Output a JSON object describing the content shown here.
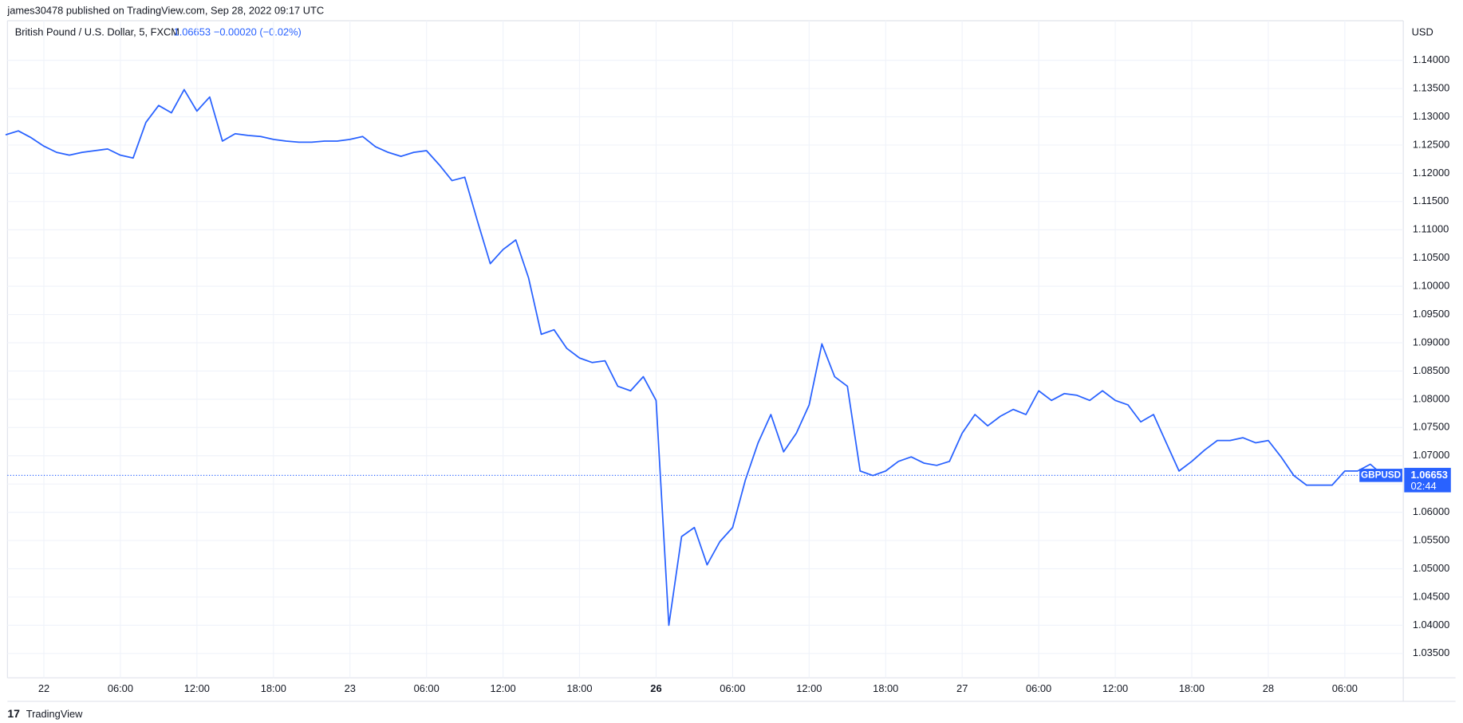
{
  "header": {
    "published": "james30478 published on TradingView.com, Sep 28, 2022 09:17 UTC"
  },
  "footer": {
    "brand": "TradingView"
  },
  "chart_data": {
    "type": "line",
    "title": "British Pound / U.S. Dollar, 5, FXCM",
    "change_label": "−0.00020 (−0.02%)",
    "y_unit": "USD",
    "countdown": "02:44",
    "grid": true,
    "categories": [
      null,
      null,
      null,
      "22",
      null,
      null,
      null,
      null,
      null,
      "06:00",
      null,
      null,
      null,
      null,
      null,
      "12:00",
      null,
      null,
      null,
      null,
      null,
      "18:00",
      null,
      null,
      null,
      null,
      null,
      "23",
      null,
      null,
      null,
      null,
      null,
      "06:00",
      null,
      null,
      null,
      null,
      null,
      "12:00",
      null,
      null,
      null,
      null,
      null,
      "18:00",
      null,
      null,
      null,
      null,
      null,
      "26",
      null,
      null,
      null,
      null,
      null,
      "06:00",
      null,
      null,
      null,
      null,
      null,
      "12:00",
      null,
      null,
      null,
      null,
      null,
      "18:00",
      null,
      null,
      null,
      null,
      null,
      "27",
      null,
      null,
      null,
      null,
      null,
      "06:00",
      null,
      null,
      null,
      null,
      null,
      "12:00",
      null,
      null,
      null,
      null,
      null,
      "18:00",
      null,
      null,
      null,
      null,
      null,
      "28",
      null,
      null,
      null,
      null,
      null,
      "06:00",
      null,
      null,
      null
    ],
    "series": [
      {
        "name": "GBPUSD",
        "color": "#2962ff",
        "values": [
          1.1268,
          1.1275,
          1.1263,
          1.1248,
          1.1237,
          1.1232,
          1.1237,
          1.124,
          1.1243,
          1.1232,
          1.1227,
          1.129,
          1.132,
          1.1307,
          1.1348,
          1.131,
          1.1335,
          1.1257,
          1.127,
          1.1267,
          1.1265,
          1.126,
          1.1257,
          1.1255,
          1.1255,
          1.1257,
          1.1257,
          1.126,
          1.1265,
          1.1247,
          1.1237,
          1.123,
          1.1237,
          1.124,
          1.1215,
          1.1187,
          1.1193,
          1.1115,
          1.104,
          1.1065,
          1.1082,
          1.1015,
          1.0915,
          1.0923,
          1.089,
          1.0873,
          1.0865,
          1.0868,
          1.0823,
          1.0815,
          1.084,
          1.0798,
          1.04,
          1.0557,
          1.0573,
          1.0507,
          1.0548,
          1.0573,
          1.0657,
          1.0723,
          1.0773,
          1.0707,
          1.074,
          1.079,
          1.0898,
          1.084,
          1.0823,
          1.0673,
          1.0665,
          1.0673,
          1.069,
          1.0698,
          1.0687,
          1.0683,
          1.069,
          1.074,
          1.0773,
          1.0753,
          1.077,
          1.0782,
          1.0773,
          1.0815,
          1.0798,
          1.081,
          1.0807,
          1.0798,
          1.0815,
          1.0798,
          1.079,
          1.076,
          1.0773,
          1.0723,
          1.0673,
          1.069,
          1.071,
          1.0727,
          1.0727,
          1.0732,
          1.0723,
          1.0727,
          1.0698,
          1.0665,
          1.0648,
          1.0648,
          1.0648,
          1.0673,
          1.0673,
          1.0685,
          1.06653
        ]
      }
    ],
    "ylim": [
      1.0307,
      1.147
    ],
    "yticks": [
      {
        "value": 1.035,
        "label": "1.03500"
      },
      {
        "value": 1.04,
        "label": "1.04000"
      },
      {
        "value": 1.045,
        "label": "1.04500"
      },
      {
        "value": 1.05,
        "label": "1.05000"
      },
      {
        "value": 1.055,
        "label": "1.05500"
      },
      {
        "value": 1.06,
        "label": "1.06000"
      },
      {
        "value": 1.065,
        "label": "1.06500"
      },
      {
        "value": 1.07,
        "label": "1.07000"
      },
      {
        "value": 1.075,
        "label": "1.07500"
      },
      {
        "value": 1.08,
        "label": "1.08000"
      },
      {
        "value": 1.085,
        "label": "1.08500"
      },
      {
        "value": 1.09,
        "label": "1.09000"
      },
      {
        "value": 1.095,
        "label": "1.09500"
      },
      {
        "value": 1.1,
        "label": "1.10000"
      },
      {
        "value": 1.105,
        "label": "1.10500"
      },
      {
        "value": 1.11,
        "label": "1.11000"
      },
      {
        "value": 1.115,
        "label": "1.11500"
      },
      {
        "value": 1.12,
        "label": "1.12000"
      },
      {
        "value": 1.125,
        "label": "1.12500"
      },
      {
        "value": 1.13,
        "label": "1.13000"
      },
      {
        "value": 1.135,
        "label": "1.13500"
      },
      {
        "value": 1.14,
        "label": "1.14000"
      }
    ]
  }
}
